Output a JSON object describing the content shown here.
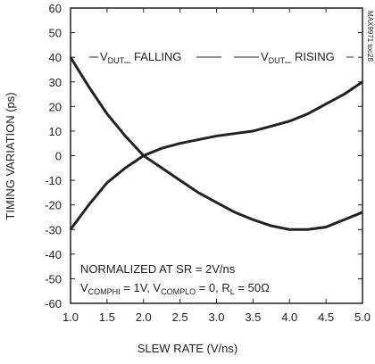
{
  "chart_data": {
    "type": "line",
    "x": [
      1.0,
      1.25,
      1.5,
      1.75,
      2.0,
      2.25,
      2.5,
      2.75,
      3.0,
      3.25,
      3.5,
      3.75,
      4.0,
      4.25,
      4.5,
      4.75,
      5.0
    ],
    "series": [
      {
        "name": {
          "base": "V",
          "sub": "DUT",
          "rest": "_ FALLING"
        },
        "color": "#222222",
        "values": [
          40,
          28,
          17,
          8,
          0,
          -5,
          -10,
          -15,
          -19,
          -23,
          -26,
          -28.5,
          -30,
          -30,
          -29,
          -26,
          -23
        ]
      },
      {
        "name": {
          "base": "V",
          "sub": "DUT",
          "rest": "_ RISING"
        },
        "color": "#222222",
        "values": [
          -30,
          -20,
          -11,
          -5,
          0,
          3,
          5,
          6.5,
          8,
          9,
          10,
          12,
          14,
          17,
          21,
          25,
          30
        ]
      }
    ],
    "xlabel": "SLEW RATE (V/ns)",
    "ylabel": "TIMING VARIATION (ps)",
    "xlim": [
      1.0,
      5.0
    ],
    "xticks": [
      {
        "value": 1.0,
        "label": "1.0"
      },
      1.5,
      {
        "value": 2.0,
        "label": "2.0"
      },
      2.5,
      {
        "value": 3.0,
        "label": "3.0"
      },
      3.5,
      {
        "value": 4.0,
        "label": "4.0"
      },
      4.5,
      {
        "value": 5.0,
        "label": "5.0"
      }
    ],
    "ylim": [
      -60,
      60
    ],
    "yticks": [
      -60,
      -50,
      -40,
      -30,
      -20,
      -10,
      0,
      10,
      20,
      30,
      40,
      50,
      60
    ],
    "grid": false,
    "note": {
      "line1": "NORMALIZED AT SR = 2V/ns",
      "line2": [
        {
          "text": "V"
        },
        {
          "text": "COMPHI",
          "sub": true
        },
        {
          "text": " = 1V, V"
        },
        {
          "text": "COMPLO",
          "sub": true
        },
        {
          "text": " = 0, R"
        },
        {
          "text": "L",
          "sub": true
        },
        {
          "text": " = 50Ω"
        }
      ]
    },
    "code": "MAX9971 toc28"
  }
}
